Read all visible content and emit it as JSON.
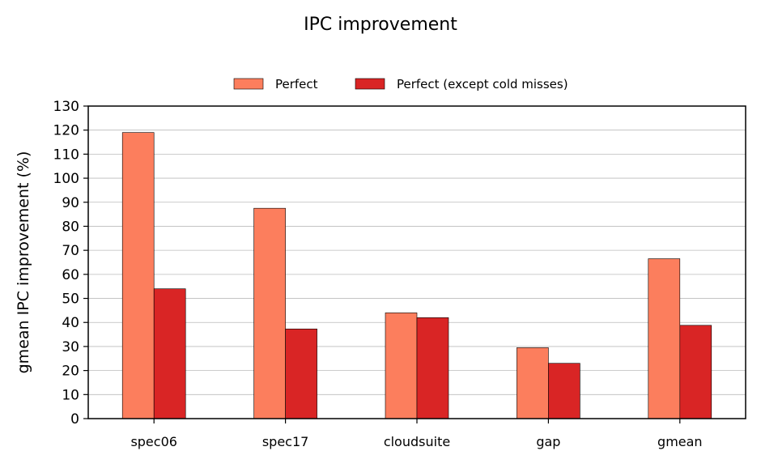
{
  "chart_data": {
    "type": "bar",
    "title": "IPC improvement",
    "xlabel": "",
    "ylabel": "gmean IPC improvement (%)",
    "categories": [
      "spec06",
      "spec17",
      "cloudsuite",
      "gap",
      "gmean"
    ],
    "series": [
      {
        "name": "Perfect",
        "color": "#fc7e5d",
        "values": [
          119,
          87.5,
          44,
          29.5,
          66.5
        ]
      },
      {
        "name": "Perfect (except cold misses)",
        "color": "#d92525",
        "values": [
          54,
          37.3,
          42,
          23,
          38.8
        ]
      }
    ],
    "ylim": [
      0,
      130
    ],
    "yticks": [
      0,
      10,
      20,
      30,
      40,
      50,
      60,
      70,
      80,
      90,
      100,
      110,
      120,
      130
    ],
    "grid": "horizontal",
    "legend_position": "top-center"
  }
}
